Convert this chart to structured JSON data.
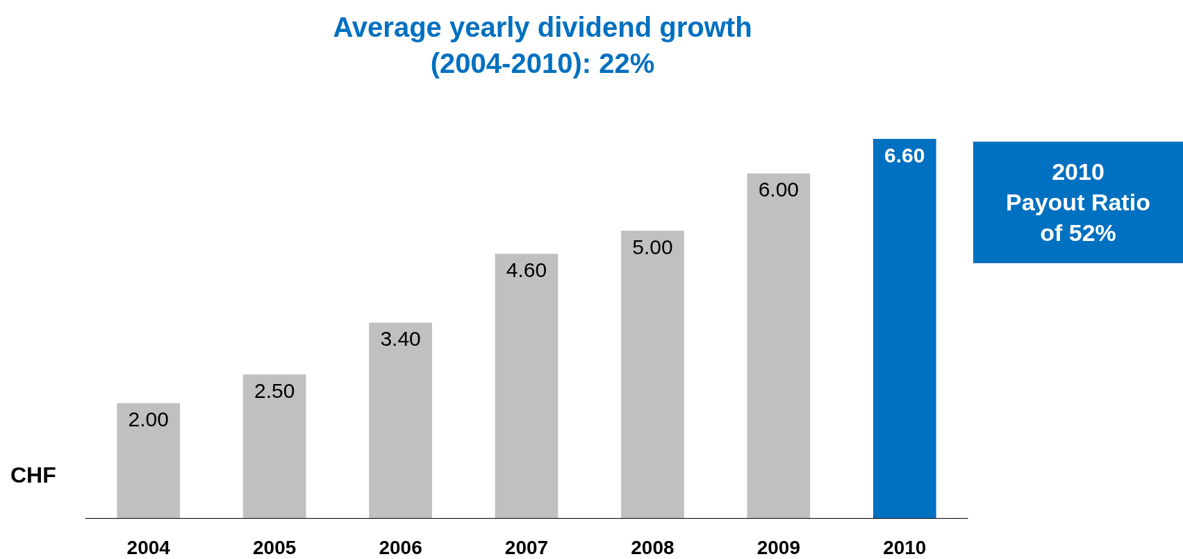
{
  "chart_data": {
    "type": "bar",
    "title": "Average yearly dividend growth\n(2004-2010): 22%",
    "ylabel": "CHF",
    "categories": [
      "2004",
      "2005",
      "2006",
      "2007",
      "2008",
      "2009",
      "2010"
    ],
    "values": [
      2.0,
      2.5,
      3.4,
      4.6,
      5.0,
      6.0,
      6.6
    ],
    "value_labels": [
      "2.00",
      "2.50",
      "3.40",
      "4.60",
      "5.00",
      "6.00",
      "6.60"
    ],
    "colors": [
      "#c0c0c0",
      "#c0c0c0",
      "#c0c0c0",
      "#c0c0c0",
      "#c0c0c0",
      "#c0c0c0",
      "#0070c0"
    ],
    "annotations": [
      "2010\nPayout Ratio\nof 52%"
    ],
    "tick_labels": "x"
  }
}
